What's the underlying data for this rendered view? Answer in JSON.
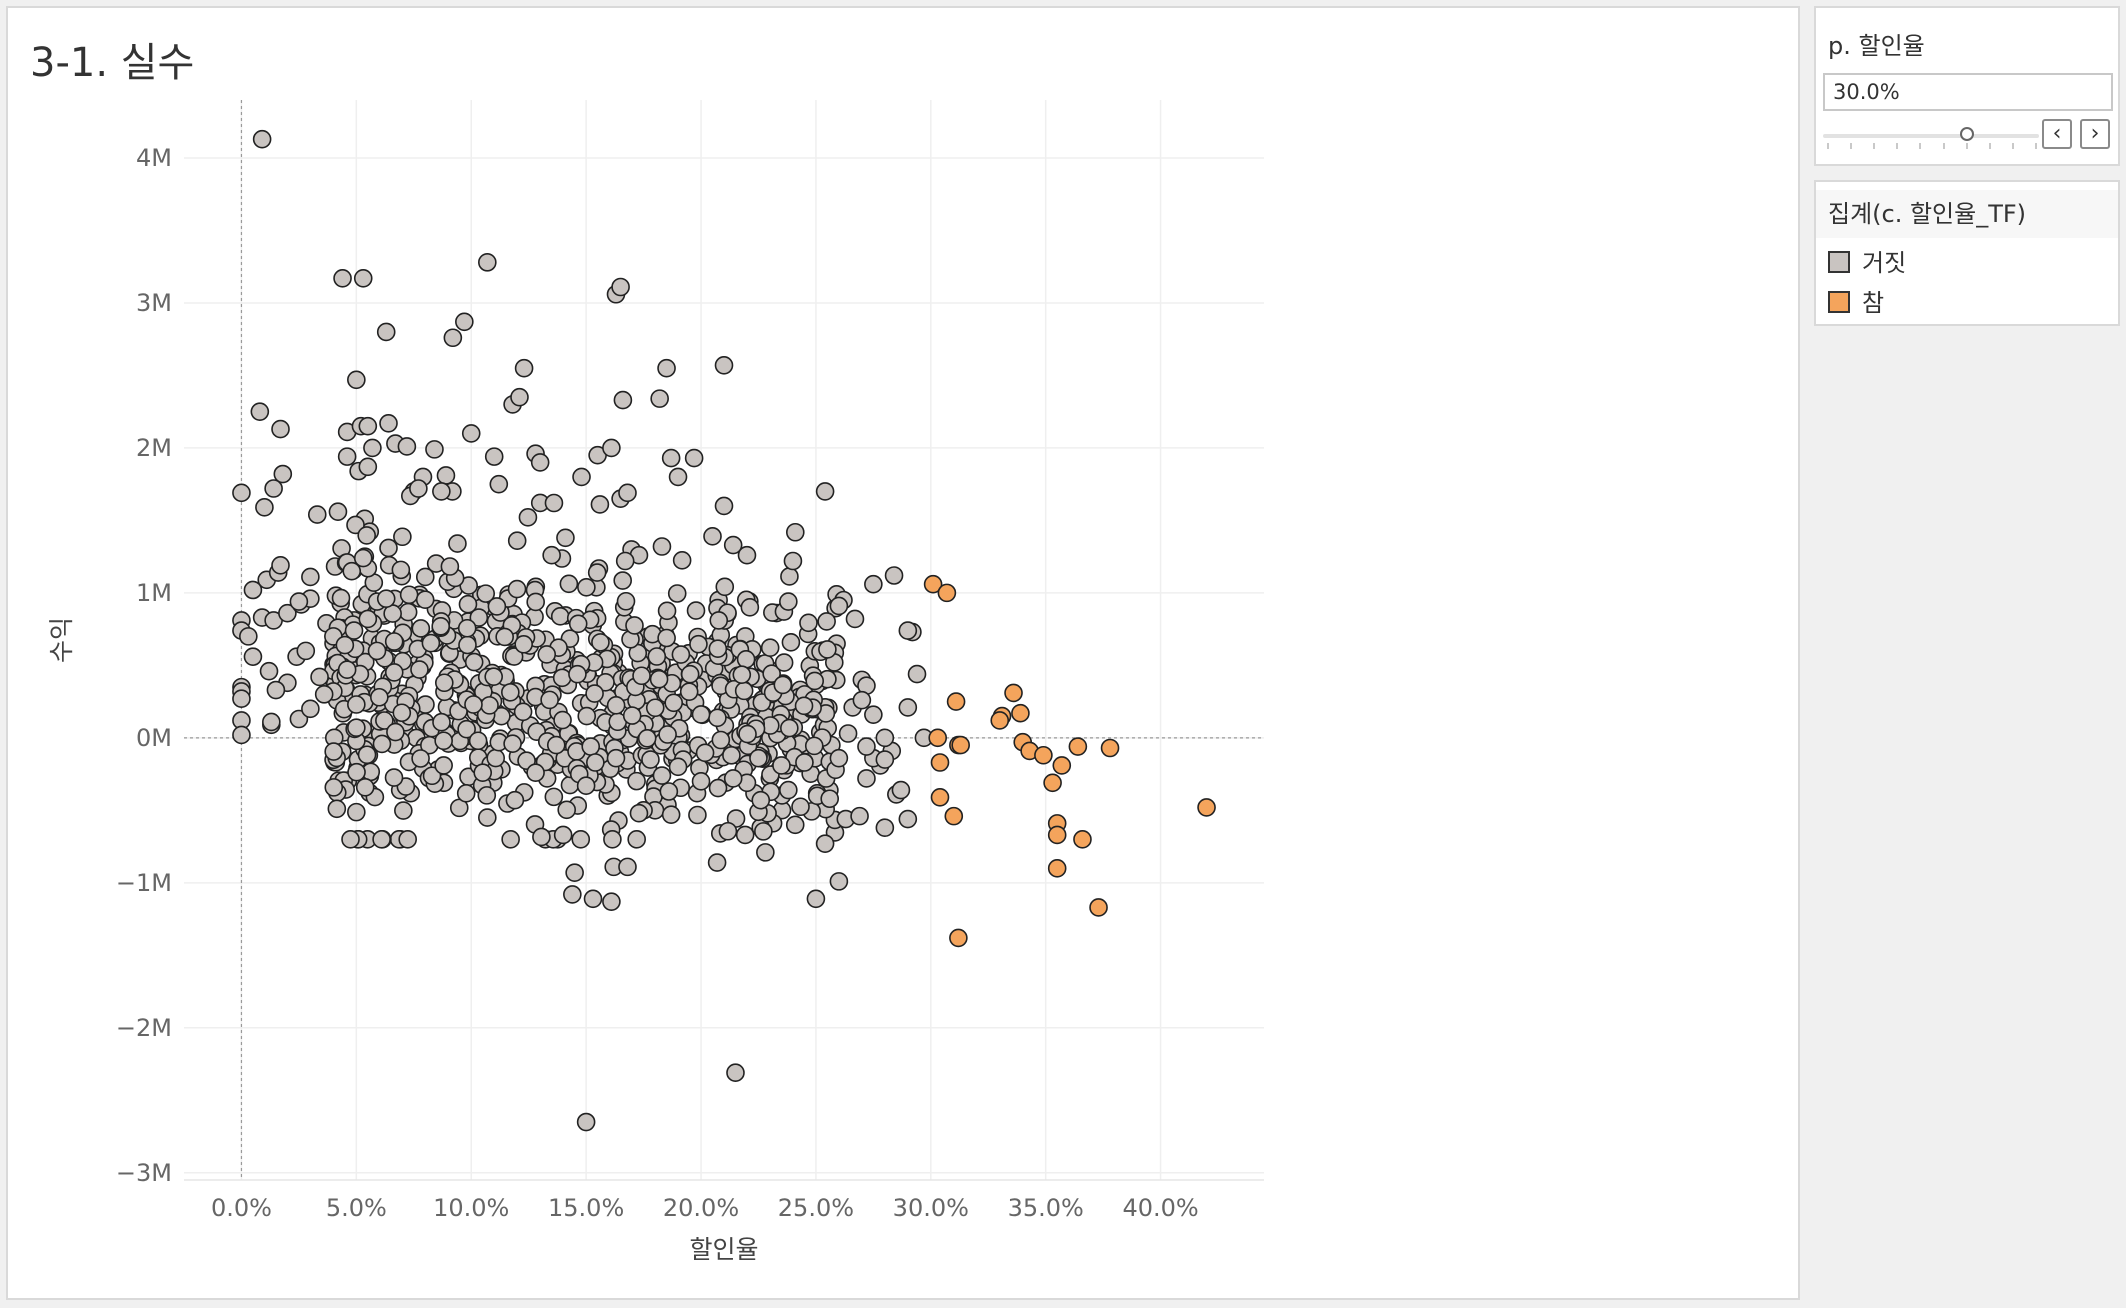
{
  "sheet": {
    "title": "3-1. 실수"
  },
  "parameter": {
    "title": "p. 할인율",
    "value_text": "30.0%",
    "value": 0.3,
    "min": 0,
    "max": 0.45,
    "prev_icon": "chevron-left-icon",
    "next_icon": "chevron-right-icon"
  },
  "legend": {
    "title": "집계(c. 할인율_TF)",
    "items": [
      {
        "label": "거짓",
        "color": "#c9c4c1"
      },
      {
        "label": "참",
        "color": "#f4a45c"
      }
    ]
  },
  "chart_data": {
    "type": "scatter",
    "title": "",
    "xlabel": "할인율",
    "ylabel": "수익",
    "xlim": [
      -0.025,
      0.445
    ],
    "ylim": [
      -3050000,
      4400000
    ],
    "x_ticks": [
      0,
      0.05,
      0.1,
      0.15,
      0.2,
      0.25,
      0.3,
      0.35,
      0.4
    ],
    "x_tick_labels": [
      "0.0%",
      "5.0%",
      "10.0%",
      "15.0%",
      "20.0%",
      "25.0%",
      "30.0%",
      "35.0%",
      "40.0%"
    ],
    "y_ticks": [
      -3000000,
      -2000000,
      -1000000,
      0,
      1000000,
      2000000,
      3000000,
      4000000
    ],
    "y_tick_labels": [
      "−3M",
      "−2M",
      "−1M",
      "0M",
      "1M",
      "2M",
      "3M",
      "4M"
    ],
    "grid": true,
    "zero_lines": true,
    "colors": {
      "false": "#c9c4c1",
      "true": "#f4a45c",
      "stroke": "#222222"
    },
    "series": [
      {
        "name": "참",
        "points": [
          [
            0.301,
            1060000
          ],
          [
            0.307,
            1000000
          ],
          [
            0.311,
            250000
          ],
          [
            0.336,
            310000
          ],
          [
            0.331,
            150000
          ],
          [
            0.33,
            120000
          ],
          [
            0.339,
            170000
          ],
          [
            0.303,
            0
          ],
          [
            0.312,
            -50000
          ],
          [
            0.313,
            -50000
          ],
          [
            0.304,
            -170000
          ],
          [
            0.34,
            -30000
          ],
          [
            0.343,
            -90000
          ],
          [
            0.349,
            -120000
          ],
          [
            0.357,
            -190000
          ],
          [
            0.364,
            -60000
          ],
          [
            0.378,
            -70000
          ],
          [
            0.353,
            -310000
          ],
          [
            0.304,
            -410000
          ],
          [
            0.31,
            -540000
          ],
          [
            0.355,
            -590000
          ],
          [
            0.355,
            -670000
          ],
          [
            0.366,
            -700000
          ],
          [
            0.355,
            -900000
          ],
          [
            0.373,
            -1170000
          ],
          [
            0.312,
            -1380000
          ],
          [
            0.42,
            -480000
          ]
        ]
      },
      {
        "name": "거짓",
        "points": [
          [
            0.009,
            4130000
          ],
          [
            0.044,
            3170000
          ],
          [
            0.053,
            3170000
          ],
          [
            0.107,
            3280000
          ],
          [
            0.163,
            3060000
          ],
          [
            0.165,
            3110000
          ],
          [
            0.097,
            2870000
          ],
          [
            0.092,
            2760000
          ],
          [
            0.063,
            2800000
          ],
          [
            0.123,
            2550000
          ],
          [
            0.185,
            2550000
          ],
          [
            0.21,
            2570000
          ],
          [
            0.05,
            2470000
          ],
          [
            0.118,
            2300000
          ],
          [
            0.121,
            2350000
          ],
          [
            0.166,
            2330000
          ],
          [
            0.182,
            2340000
          ],
          [
            0.008,
            2250000
          ],
          [
            0.017,
            2130000
          ],
          [
            0.046,
            2110000
          ],
          [
            0.052,
            2150000
          ],
          [
            0.055,
            2150000
          ],
          [
            0.064,
            2170000
          ],
          [
            0.1,
            2100000
          ],
          [
            0.057,
            2000000
          ],
          [
            0.067,
            2030000
          ],
          [
            0.072,
            2010000
          ],
          [
            0.084,
            1990000
          ],
          [
            0.046,
            1940000
          ],
          [
            0.11,
            1940000
          ],
          [
            0.128,
            1960000
          ],
          [
            0.13,
            1900000
          ],
          [
            0.155,
            1950000
          ],
          [
            0.161,
            2000000
          ],
          [
            0.187,
            1930000
          ],
          [
            0.197,
            1930000
          ],
          [
            0.051,
            1840000
          ],
          [
            0.055,
            1870000
          ],
          [
            0.018,
            1820000
          ],
          [
            0.079,
            1800000
          ],
          [
            0.089,
            1810000
          ],
          [
            0.148,
            1800000
          ],
          [
            0.19,
            1800000
          ],
          [
            0.0,
            1690000
          ],
          [
            0.01,
            1590000
          ],
          [
            0.014,
            1720000
          ],
          [
            0.033,
            1540000
          ],
          [
            0.042,
            1560000
          ],
          [
            0.077,
            1720000
          ],
          [
            0.087,
            1700000
          ],
          [
            0.112,
            1750000
          ],
          [
            0.136,
            1620000
          ],
          [
            0.156,
            1610000
          ],
          [
            0.165,
            1650000
          ],
          [
            0.168,
            1690000
          ],
          [
            0.21,
            1600000
          ],
          [
            0.254,
            1700000
          ],
          [
            0.011,
            1090000
          ],
          [
            0.016,
            1140000
          ],
          [
            0.017,
            1190000
          ],
          [
            0.009,
            830000
          ],
          [
            0.0,
            810000
          ],
          [
            0.0,
            740000
          ],
          [
            0.014,
            810000
          ],
          [
            0.02,
            860000
          ],
          [
            0.026,
            920000
          ],
          [
            0.03,
            960000
          ],
          [
            0.037,
            790000
          ],
          [
            0.042,
            760000
          ],
          [
            0.049,
            740000
          ],
          [
            0.012,
            460000
          ],
          [
            0.024,
            560000
          ],
          [
            0.028,
            600000
          ],
          [
            0.034,
            420000
          ],
          [
            0.04,
            320000
          ],
          [
            0.046,
            470000
          ],
          [
            0.0,
            350000
          ],
          [
            0.0,
            320000
          ],
          [
            0.0,
            270000
          ],
          [
            0.0,
            120000
          ],
          [
            0.0,
            20000
          ],
          [
            0.013,
            90000
          ],
          [
            0.013,
            110000
          ],
          [
            0.025,
            130000
          ],
          [
            0.036,
            300000
          ],
          [
            0.05,
            230000
          ],
          [
            0.05,
            70000
          ],
          [
            0.06,
            280000
          ],
          [
            0.067,
            40000
          ],
          [
            0.088,
            -20000
          ],
          [
            0.088,
            -190000
          ],
          [
            0.098,
            60000
          ],
          [
            0.103,
            -20000
          ],
          [
            0.105,
            -240000
          ],
          [
            0.107,
            -550000
          ],
          [
            0.112,
            -30000
          ],
          [
            0.118,
            -40000
          ],
          [
            0.119,
            -430000
          ],
          [
            0.128,
            -240000
          ],
          [
            0.137,
            -50000
          ],
          [
            0.14,
            -670000
          ],
          [
            0.146,
            -210000
          ],
          [
            0.147,
            -250000
          ],
          [
            0.15,
            -330000
          ],
          [
            0.152,
            -60000
          ],
          [
            0.145,
            -930000
          ],
          [
            0.144,
            -1080000
          ],
          [
            0.153,
            -1110000
          ],
          [
            0.161,
            -1130000
          ],
          [
            0.162,
            -890000
          ],
          [
            0.168,
            -890000
          ],
          [
            0.15,
            -2650000
          ],
          [
            0.215,
            -2310000
          ],
          [
            0.207,
            -860000
          ],
          [
            0.228,
            -790000
          ],
          [
            0.25,
            -1110000
          ],
          [
            0.254,
            -730000
          ],
          [
            0.26,
            -990000
          ],
          [
            0.263,
            -560000
          ],
          [
            0.269,
            -540000
          ],
          [
            0.241,
            -600000
          ],
          [
            0.225,
            -510000
          ],
          [
            0.18,
            -500000
          ],
          [
            0.187,
            -530000
          ],
          [
            0.175,
            -500000
          ],
          [
            0.173,
            -520000
          ],
          [
            0.186,
            -370000
          ],
          [
            0.28,
            -620000
          ],
          [
            0.285,
            -390000
          ],
          [
            0.29,
            -560000
          ],
          [
            0.287,
            -360000
          ],
          [
            0.278,
            -190000
          ],
          [
            0.283,
            -90000
          ],
          [
            0.294,
            440000
          ],
          [
            0.292,
            730000
          ],
          [
            0.29,
            740000
          ],
          [
            0.284,
            1120000
          ],
          [
            0.275,
            1060000
          ],
          [
            0.267,
            820000
          ],
          [
            0.259,
            990000
          ],
          [
            0.262,
            950000
          ],
          [
            0.26,
            910000
          ],
          [
            0.24,
            1220000
          ],
          [
            0.238,
            940000
          ],
          [
            0.22,
            1260000
          ],
          [
            0.214,
            1330000
          ],
          [
            0.205,
            1390000
          ],
          [
            0.183,
            1320000
          ],
          [
            0.173,
            1260000
          ],
          [
            0.167,
            1220000
          ],
          [
            0.141,
            1380000
          ],
          [
            0.135,
            1260000
          ],
          [
            0.12,
            1360000
          ],
          [
            0.08,
            1110000
          ],
          [
            0.094,
            1340000
          ],
          [
            0.064,
            1310000
          ],
          [
            0.055,
            1170000
          ],
          [
            0.046,
            1210000
          ],
          [
            0.053,
            1240000
          ],
          [
            0.258,
            520000
          ],
          [
            0.255,
            610000
          ],
          [
            0.27,
            400000
          ],
          [
            0.272,
            360000
          ],
          [
            0.275,
            160000
          ],
          [
            0.266,
            210000
          ],
          [
            0.264,
            30000
          ],
          [
            0.275,
            -140000
          ],
          [
            0.28,
            -150000
          ],
          [
            0.272,
            -280000
          ],
          [
            0.256,
            -420000
          ],
          [
            0.238,
            -360000
          ],
          [
            0.226,
            -430000
          ],
          [
            0.22,
            -310000
          ],
          [
            0.214,
            -280000
          ],
          [
            0.2,
            -300000
          ],
          [
            0.19,
            -200000
          ],
          [
            0.183,
            -260000
          ],
          [
            0.178,
            -150000
          ],
          [
            0.163,
            -140000
          ],
          [
            0.154,
            -170000
          ],
          [
            0.28,
            0
          ],
          [
            0.272,
            -60000
          ],
          [
            0.26,
            -140000
          ],
          [
            0.245,
            -170000
          ],
          [
            0.235,
            -190000
          ],
          [
            0.225,
            -140000
          ],
          [
            0.297,
            0
          ],
          [
            0.29,
            210000
          ],
          [
            0.27,
            260000
          ],
          [
            0.005,
            1020000
          ],
          [
            0.03,
            1110000
          ],
          [
            0.003,
            700000
          ],
          [
            0.025,
            940000
          ],
          [
            0.04,
            700000
          ],
          [
            0.005,
            560000
          ],
          [
            0.02,
            380000
          ],
          [
            0.03,
            200000
          ],
          [
            0.015,
            330000
          ],
          [
            0.048,
            1150000
          ],
          [
            0.045,
            640000
          ],
          [
            0.055,
            820000
          ],
          [
            0.059,
            600000
          ],
          [
            0.063,
            960000
          ]
        ],
        "cluster": {
          "seed": 7,
          "count": 820,
          "x_range": [
            0.04,
            0.26
          ],
          "y_center": 450000,
          "y_spread": 900000
        }
      }
    ]
  }
}
